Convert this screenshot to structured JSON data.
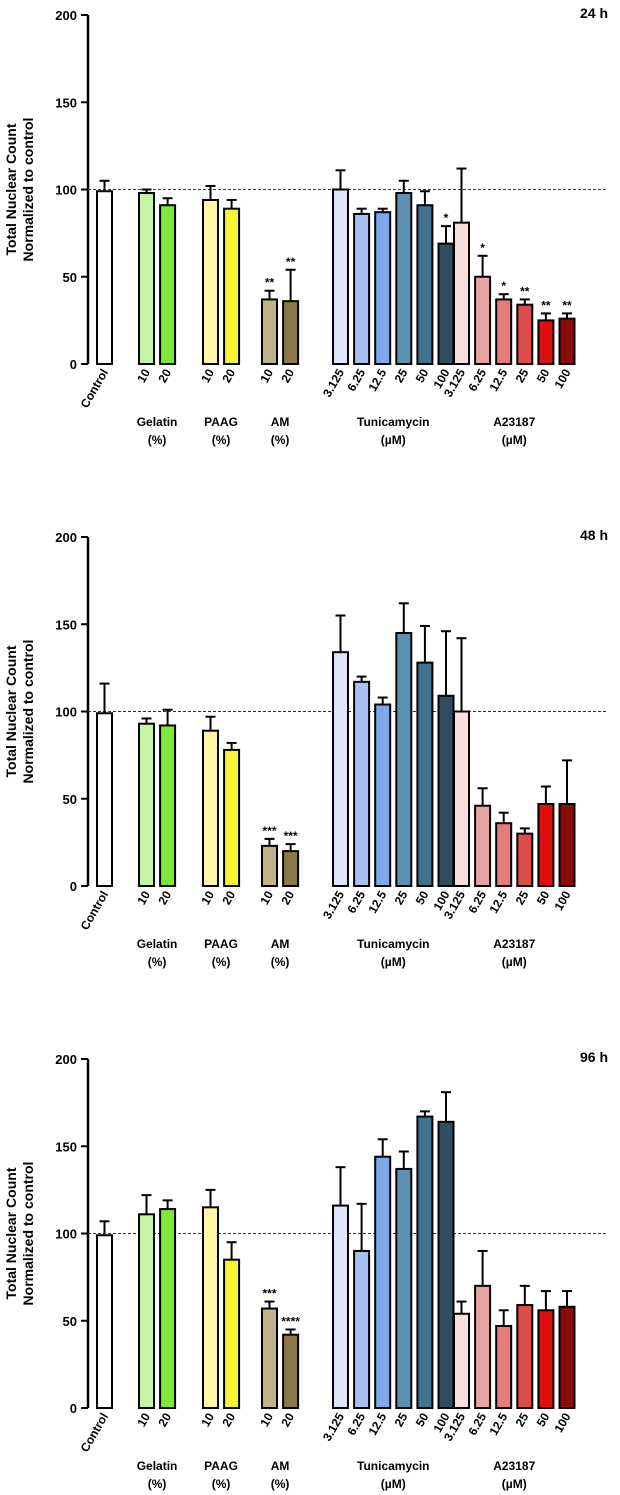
{
  "chart_data": [
    {
      "type": "bar",
      "title": "24 h",
      "ylabel": [
        "Total Nuclear Count",
        "Normalized to control"
      ],
      "ylim": [
        0,
        200
      ],
      "yticks": [
        0,
        50,
        100,
        150,
        200
      ],
      "reference_line": 100,
      "groups": [
        {
          "name": [
            "Control"
          ],
          "items": [
            {
              "label": "Control",
              "value": 99,
              "error": 6,
              "color": "#ffffff",
              "sig": ""
            }
          ]
        },
        {
          "name": [
            "Gelatin",
            "(%)"
          ],
          "items": [
            {
              "label": "10",
              "value": 98,
              "error": 2,
              "color": "#c4f5a6",
              "sig": ""
            },
            {
              "label": "20",
              "value": 91,
              "error": 4,
              "color": "#7de83a",
              "sig": ""
            }
          ]
        },
        {
          "name": [
            "PAAG",
            "(%)"
          ],
          "items": [
            {
              "label": "10",
              "value": 94,
              "error": 8,
              "color": "#fff6a8",
              "sig": ""
            },
            {
              "label": "20",
              "value": 89,
              "error": 5,
              "color": "#f6f534",
              "sig": ""
            }
          ]
        },
        {
          "name": [
            "AM",
            "(%)"
          ],
          "items": [
            {
              "label": "10",
              "value": 37,
              "error": 5,
              "color": "#bdb48a",
              "sig": "**"
            },
            {
              "label": "20",
              "value": 36,
              "error": 18,
              "color": "#8a7a48",
              "sig": "**"
            }
          ]
        },
        {
          "name": [
            "Tunicamycin",
            "(µM)"
          ],
          "items": [
            {
              "label": "3.125",
              "value": 100,
              "error": 11,
              "color": "#dce6f8",
              "sig": ""
            },
            {
              "label": "6.25",
              "value": 86,
              "error": 3,
              "color": "#a9c0ee",
              "sig": ""
            },
            {
              "label": "12.5",
              "value": 87,
              "error": 2,
              "color": "#7ea8e8",
              "sig": ""
            },
            {
              "label": "25",
              "value": 98,
              "error": 7,
              "color": "#5d8fb0",
              "sig": ""
            },
            {
              "label": "50",
              "value": 91,
              "error": 8,
              "color": "#41728e",
              "sig": ""
            },
            {
              "label": "100",
              "value": 69,
              "error": 10,
              "color": "#2f4e5f",
              "sig": "*"
            }
          ]
        },
        {
          "name": [
            "A23187",
            "(µM)"
          ],
          "items": [
            {
              "label": "3.125",
              "value": 81,
              "error": 31,
              "color": "#f9dede",
              "sig": ""
            },
            {
              "label": "6.25",
              "value": 50,
              "error": 12,
              "color": "#e8a4a4",
              "sig": "*"
            },
            {
              "label": "12.5",
              "value": 37,
              "error": 3,
              "color": "#e57b7b",
              "sig": "*"
            },
            {
              "label": "25",
              "value": 34,
              "error": 3,
              "color": "#df4a4a",
              "sig": "**"
            },
            {
              "label": "50",
              "value": 25,
              "error": 4,
              "color": "#e00f0f",
              "sig": "**"
            },
            {
              "label": "100",
              "value": 26,
              "error": 3,
              "color": "#8b0b0b",
              "sig": "**"
            }
          ]
        }
      ]
    },
    {
      "type": "bar",
      "title": "48 h",
      "ylabel": [
        "Total Nuclear Count",
        "Normalized to control"
      ],
      "ylim": [
        0,
        200
      ],
      "yticks": [
        0,
        50,
        100,
        150,
        200
      ],
      "reference_line": 100,
      "groups": [
        {
          "name": [
            "Control"
          ],
          "items": [
            {
              "label": "Control",
              "value": 99,
              "error": 17,
              "color": "#ffffff",
              "sig": ""
            }
          ]
        },
        {
          "name": [
            "Gelatin",
            "(%)"
          ],
          "items": [
            {
              "label": "10",
              "value": 93,
              "error": 3,
              "color": "#c4f5a6",
              "sig": ""
            },
            {
              "label": "20",
              "value": 92,
              "error": 9,
              "color": "#7de83a",
              "sig": ""
            }
          ]
        },
        {
          "name": [
            "PAAG",
            "(%)"
          ],
          "items": [
            {
              "label": "10",
              "value": 89,
              "error": 8,
              "color": "#fff6a8",
              "sig": ""
            },
            {
              "label": "20",
              "value": 78,
              "error": 4,
              "color": "#f6f534",
              "sig": ""
            }
          ]
        },
        {
          "name": [
            "AM",
            "(%)"
          ],
          "items": [
            {
              "label": "10",
              "value": 23,
              "error": 4,
              "color": "#bdb48a",
              "sig": "***"
            },
            {
              "label": "20",
              "value": 20,
              "error": 4,
              "color": "#8a7a48",
              "sig": "***"
            }
          ]
        },
        {
          "name": [
            "Tunicamycin",
            "(µM)"
          ],
          "items": [
            {
              "label": "3.125",
              "value": 134,
              "error": 21,
              "color": "#dce6f8",
              "sig": ""
            },
            {
              "label": "6.25",
              "value": 117,
              "error": 3,
              "color": "#a9c0ee",
              "sig": ""
            },
            {
              "label": "12.5",
              "value": 104,
              "error": 4,
              "color": "#7ea8e8",
              "sig": ""
            },
            {
              "label": "25",
              "value": 145,
              "error": 17,
              "color": "#5d8fb0",
              "sig": ""
            },
            {
              "label": "50",
              "value": 128,
              "error": 21,
              "color": "#41728e",
              "sig": ""
            },
            {
              "label": "100",
              "value": 109,
              "error": 37,
              "color": "#2f4e5f",
              "sig": ""
            }
          ]
        },
        {
          "name": [
            "A23187",
            "(µM)"
          ],
          "items": [
            {
              "label": "3.125",
              "value": 100,
              "error": 42,
              "color": "#f9dede",
              "sig": ""
            },
            {
              "label": "6.25",
              "value": 46,
              "error": 10,
              "color": "#e8a4a4",
              "sig": ""
            },
            {
              "label": "12.5",
              "value": 36,
              "error": 6,
              "color": "#e57b7b",
              "sig": ""
            },
            {
              "label": "25",
              "value": 30,
              "error": 3,
              "color": "#df4a4a",
              "sig": ""
            },
            {
              "label": "50",
              "value": 47,
              "error": 10,
              "color": "#e00f0f",
              "sig": ""
            },
            {
              "label": "100",
              "value": 47,
              "error": 25,
              "color": "#8b0b0b",
              "sig": ""
            }
          ]
        }
      ]
    },
    {
      "type": "bar",
      "title": "96 h",
      "ylabel": [
        "Total Nuclear Count",
        "Normalized to control"
      ],
      "ylim": [
        0,
        200
      ],
      "yticks": [
        0,
        50,
        100,
        150,
        200
      ],
      "reference_line": 100,
      "groups": [
        {
          "name": [
            "Control"
          ],
          "items": [
            {
              "label": "Control",
              "value": 99,
              "error": 8,
              "color": "#ffffff",
              "sig": ""
            }
          ]
        },
        {
          "name": [
            "Gelatin",
            "(%)"
          ],
          "items": [
            {
              "label": "10",
              "value": 111,
              "error": 11,
              "color": "#c4f5a6",
              "sig": ""
            },
            {
              "label": "20",
              "value": 114,
              "error": 5,
              "color": "#7de83a",
              "sig": ""
            }
          ]
        },
        {
          "name": [
            "PAAG",
            "(%)"
          ],
          "items": [
            {
              "label": "10",
              "value": 115,
              "error": 10,
              "color": "#fff6a8",
              "sig": ""
            },
            {
              "label": "20",
              "value": 85,
              "error": 10,
              "color": "#f6f534",
              "sig": ""
            }
          ]
        },
        {
          "name": [
            "AM",
            "(%)"
          ],
          "items": [
            {
              "label": "10",
              "value": 57,
              "error": 4,
              "color": "#bdb48a",
              "sig": "***"
            },
            {
              "label": "20",
              "value": 42,
              "error": 3,
              "color": "#8a7a48",
              "sig": "****"
            }
          ]
        },
        {
          "name": [
            "Tunicamycin",
            "(µM)"
          ],
          "items": [
            {
              "label": "3.125",
              "value": 116,
              "error": 22,
              "color": "#dce6f8",
              "sig": ""
            },
            {
              "label": "6.25",
              "value": 90,
              "error": 27,
              "color": "#a9c0ee",
              "sig": ""
            },
            {
              "label": "12.5",
              "value": 144,
              "error": 10,
              "color": "#7ea8e8",
              "sig": ""
            },
            {
              "label": "25",
              "value": 137,
              "error": 10,
              "color": "#5d8fb0",
              "sig": ""
            },
            {
              "label": "50",
              "value": 167,
              "error": 3,
              "color": "#41728e",
              "sig": ""
            },
            {
              "label": "100",
              "value": 164,
              "error": 17,
              "color": "#2f4e5f",
              "sig": ""
            }
          ]
        },
        {
          "name": [
            "A23187",
            "(µM)"
          ],
          "items": [
            {
              "label": "3.125",
              "value": 54,
              "error": 7,
              "color": "#f9dede",
              "sig": ""
            },
            {
              "label": "6.25",
              "value": 70,
              "error": 20,
              "color": "#e8a4a4",
              "sig": ""
            },
            {
              "label": "12.5",
              "value": 47,
              "error": 9,
              "color": "#e57b7b",
              "sig": ""
            },
            {
              "label": "25",
              "value": 59,
              "error": 11,
              "color": "#df4a4a",
              "sig": ""
            },
            {
              "label": "50",
              "value": 56,
              "error": 11,
              "color": "#e00f0f",
              "sig": ""
            },
            {
              "label": "100",
              "value": 58,
              "error": 9,
              "color": "#8b0b0b",
              "sig": ""
            }
          ]
        }
      ]
    }
  ]
}
